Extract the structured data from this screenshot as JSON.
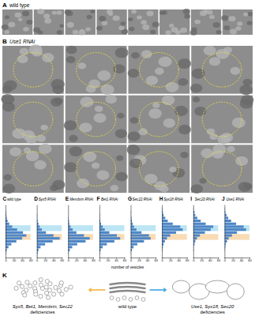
{
  "panel_a": {
    "label": "A",
    "title": "wild type",
    "image_count": 8
  },
  "panel_b": {
    "label": "B",
    "title": "Use1 RNAi",
    "image_rows": 3,
    "image_cols": 4
  },
  "histogram_highlights": [
    {
      "from": 7,
      "to": 8,
      "color": "#a6dcf0"
    },
    {
      "from": 10,
      "to": 11,
      "color": "#f7cf9c"
    }
  ],
  "histogram_xlabel": "number of vesicles",
  "chart_data": [
    {
      "type": "bar",
      "orientation": "horizontal",
      "label": "C",
      "title": "wild type",
      "categories": [
        null,
        null,
        null,
        null,
        null,
        null,
        null,
        null,
        null,
        null,
        null,
        null,
        null,
        null,
        null,
        null,
        null,
        null
      ],
      "values": [
        0,
        0,
        1,
        2,
        3,
        5,
        9,
        16,
        28,
        42,
        50,
        40,
        26,
        14,
        7,
        3,
        1,
        0
      ],
      "color": "#4f86c6",
      "xlim": [
        0,
        60
      ],
      "xticks": [
        0,
        20,
        40,
        60
      ],
      "tick_labels": "x"
    },
    {
      "type": "bar",
      "orientation": "horizontal",
      "label": "D",
      "title": "Syx5 RNAi",
      "categories": [
        null,
        null,
        null,
        null,
        null,
        null,
        null,
        null,
        null,
        null,
        null,
        null,
        null,
        null,
        null,
        null,
        null,
        null
      ],
      "values": [
        0,
        0,
        0,
        1,
        1,
        2,
        4,
        7,
        12,
        22,
        40,
        55,
        38,
        20,
        9,
        4,
        2,
        1
      ],
      "color": "#4f86c6",
      "xlim": [
        0,
        60
      ],
      "xticks": [
        0,
        20,
        40,
        60
      ],
      "tick_labels": "x"
    },
    {
      "type": "bar",
      "orientation": "horizontal",
      "label": "E",
      "title": "Membrin RNAi",
      "categories": [
        null,
        null,
        null,
        null,
        null,
        null,
        null,
        null,
        null,
        null,
        null,
        null,
        null,
        null,
        null,
        null,
        null,
        null
      ],
      "values": [
        0,
        0,
        0,
        0,
        1,
        2,
        3,
        6,
        11,
        20,
        38,
        52,
        42,
        22,
        10,
        4,
        1,
        0
      ],
      "color": "#4f86c6",
      "xlim": [
        0,
        60
      ],
      "xticks": [
        0,
        20,
        40,
        60
      ],
      "tick_labels": "x"
    },
    {
      "type": "bar",
      "orientation": "horizontal",
      "label": "F",
      "title": "Bet1 RNAi",
      "categories": [
        null,
        null,
        null,
        null,
        null,
        null,
        null,
        null,
        null,
        null,
        null,
        null,
        null,
        null,
        null,
        null,
        null,
        null
      ],
      "values": [
        0,
        0,
        0,
        1,
        1,
        2,
        4,
        8,
        13,
        24,
        42,
        50,
        36,
        18,
        8,
        3,
        1,
        0
      ],
      "color": "#4f86c6",
      "xlim": [
        0,
        60
      ],
      "xticks": [
        0,
        20,
        40,
        60
      ],
      "tick_labels": "x"
    },
    {
      "type": "bar",
      "orientation": "horizontal",
      "label": "G",
      "title": "Sec22 RNAi",
      "categories": [
        null,
        null,
        null,
        null,
        null,
        null,
        null,
        null,
        null,
        null,
        null,
        null,
        null,
        null,
        null,
        null,
        null,
        null
      ],
      "values": [
        0,
        0,
        1,
        1,
        2,
        3,
        5,
        8,
        14,
        26,
        44,
        48,
        32,
        16,
        7,
        3,
        1,
        0
      ],
      "color": "#4f86c6",
      "xlim": [
        0,
        60
      ],
      "xticks": [
        0,
        20,
        40,
        60
      ],
      "tick_labels": "x"
    },
    {
      "type": "bar",
      "orientation": "horizontal",
      "label": "H",
      "title": "Syx18 RNAi",
      "categories": [
        null,
        null,
        null,
        null,
        null,
        null,
        null,
        null,
        null,
        null,
        null,
        null,
        null,
        null,
        null,
        null,
        null,
        null
      ],
      "values": [
        0,
        1,
        2,
        4,
        8,
        14,
        26,
        44,
        50,
        34,
        20,
        12,
        7,
        4,
        2,
        1,
        0,
        0
      ],
      "color": "#4f86c6",
      "xlim": [
        0,
        60
      ],
      "xticks": [
        0,
        20,
        40,
        60
      ],
      "tick_labels": "x"
    },
    {
      "type": "bar",
      "orientation": "horizontal",
      "label": "I",
      "title": "Sec20 RNAi",
      "categories": [
        null,
        null,
        null,
        null,
        null,
        null,
        null,
        null,
        null,
        null,
        null,
        null,
        null,
        null,
        null,
        null,
        null,
        null
      ],
      "values": [
        0,
        1,
        3,
        5,
        10,
        18,
        30,
        48,
        42,
        28,
        16,
        9,
        5,
        3,
        1,
        1,
        0,
        0
      ],
      "color": "#4f86c6",
      "xlim": [
        0,
        60
      ],
      "xticks": [
        0,
        20,
        40,
        60
      ],
      "tick_labels": "x"
    },
    {
      "type": "bar",
      "orientation": "horizontal",
      "label": "J",
      "title": "Use1 RNAi",
      "categories": [
        null,
        null,
        null,
        null,
        null,
        null,
        null,
        null,
        null,
        null,
        null,
        null,
        null,
        null,
        null,
        null,
        null,
        null
      ],
      "values": [
        0,
        1,
        2,
        5,
        9,
        16,
        28,
        46,
        52,
        30,
        18,
        10,
        6,
        3,
        2,
        1,
        0,
        0
      ],
      "color": "#4f86c6",
      "xlim": [
        0,
        60
      ],
      "xticks": [
        0,
        20,
        40,
        60
      ],
      "tick_labels": "x"
    }
  ],
  "panel_k": {
    "label": "K",
    "groups": [
      {
        "lines": [
          "Syx5, Bet1, Membrin, Sec22",
          "deficiencies"
        ]
      },
      {
        "lines": [
          "wild type"
        ]
      },
      {
        "lines": [
          "Use1, Syx18, Sec20",
          "deficiencies"
        ]
      }
    ]
  }
}
